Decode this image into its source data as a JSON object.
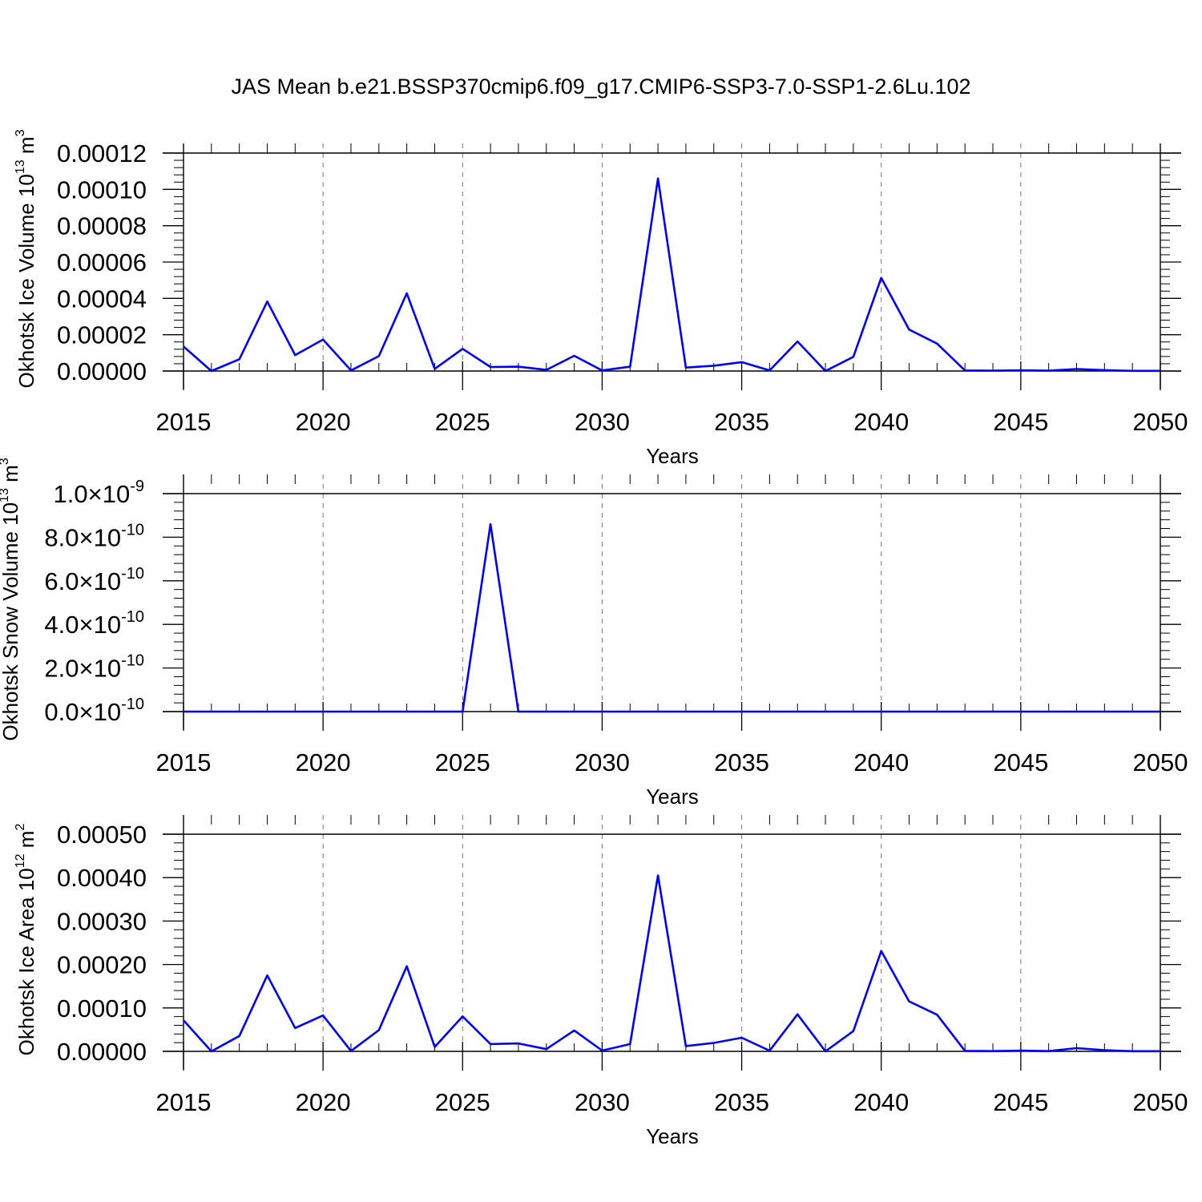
{
  "title": "JAS Mean b.e21.BSSP370cmip6.f09_g17.CMIP6-SSP3-7.0-SSP1-2.6Lu.102",
  "line_color": "#0000ff",
  "chart_data": [
    {
      "type": "line",
      "xlabel": "Years",
      "ylabel": "Okhotsk Ice Volume 10",
      "ylabel_exp": "13",
      "ylabel_unit": "m",
      "ylabel_unit_exp": "3",
      "xlim": [
        2015,
        2050
      ],
      "ylim": [
        0,
        0.00012
      ],
      "xticks": [
        "2015",
        "2020",
        "2025",
        "2030",
        "2035",
        "2040",
        "2045",
        "2050"
      ],
      "yticks": [
        {
          "value": 0.0,
          "label": "0.00000"
        },
        {
          "value": 2e-05,
          "label": "0.00002"
        },
        {
          "value": 4e-05,
          "label": "0.00004"
        },
        {
          "value": 6e-05,
          "label": "0.00006"
        },
        {
          "value": 8e-05,
          "label": "0.00008"
        },
        {
          "value": 0.0001,
          "label": "0.00010"
        },
        {
          "value": 0.00012,
          "label": "0.00012"
        }
      ],
      "grid_x": "dashed",
      "x": [
        2015,
        2016,
        2017,
        2018,
        2019,
        2020,
        2021,
        2022,
        2023,
        2024,
        2025,
        2026,
        2027,
        2028,
        2029,
        2030,
        2031,
        2032,
        2033,
        2034,
        2035,
        2036,
        2037,
        2038,
        2039,
        2040,
        2041,
        2042,
        2043,
        2044,
        2045,
        2046,
        2047,
        2048,
        2049,
        2050
      ],
      "y": [
        1.35e-05,
        0.0,
        6.5e-06,
        3.83e-05,
        8.8e-06,
        1.73e-05,
        3e-07,
        8.2e-06,
        4.28e-05,
        1.2e-06,
        1.22e-05,
        2.2e-06,
        2.4e-06,
        6e-07,
        8.4e-06,
        3e-07,
        2.4e-06,
        0.000106,
        1.9e-06,
        2.9e-06,
        4.9e-06,
        3e-07,
        1.63e-05,
        0.0,
        7.8e-06,
        5.13e-05,
        2.28e-05,
        1.51e-05,
        3e-07,
        2e-07,
        4e-07,
        2e-07,
        1.1e-06,
        5e-07,
        1e-07,
        1e-07
      ]
    },
    {
      "type": "line",
      "xlabel": "Years",
      "ylabel": "Okhotsk Snow Volume 10",
      "ylabel_exp": "13",
      "ylabel_unit": "m",
      "ylabel_unit_exp": "3",
      "xlim": [
        2015,
        2050
      ],
      "ylim": [
        0,
        1e-09
      ],
      "xticks": [
        "2015",
        "2020",
        "2025",
        "2030",
        "2035",
        "2040",
        "2045",
        "2050"
      ],
      "yticks": [
        {
          "value": 0.0,
          "mantissa": "0.0",
          "exp": "-10"
        },
        {
          "value": 2e-10,
          "mantissa": "2.0",
          "exp": "-10"
        },
        {
          "value": 4e-10,
          "mantissa": "4.0",
          "exp": "-10"
        },
        {
          "value": 6e-10,
          "mantissa": "6.0",
          "exp": "-10"
        },
        {
          "value": 8e-10,
          "mantissa": "8.0",
          "exp": "-10"
        },
        {
          "value": 1e-09,
          "mantissa": "1.0",
          "exp": "-9"
        }
      ],
      "grid_x": "dashed",
      "x": [
        2015,
        2016,
        2017,
        2018,
        2019,
        2020,
        2021,
        2022,
        2023,
        2024,
        2025,
        2026,
        2027,
        2028,
        2029,
        2030,
        2031,
        2032,
        2033,
        2034,
        2035,
        2036,
        2037,
        2038,
        2039,
        2040,
        2041,
        2042,
        2043,
        2044,
        2045,
        2046,
        2047,
        2048,
        2049,
        2050
      ],
      "y": [
        0,
        0,
        0,
        0,
        0,
        0,
        0,
        0,
        0,
        0,
        0,
        8.6e-10,
        0,
        0,
        0,
        0,
        0,
        0,
        0,
        0,
        0,
        0,
        0,
        0,
        0,
        0,
        0,
        0,
        0,
        0,
        0,
        0,
        0,
        0,
        0,
        0
      ]
    },
    {
      "type": "line",
      "xlabel": "Years",
      "ylabel": "Okhotsk Ice Area 10",
      "ylabel_exp": "12",
      "ylabel_unit": "m",
      "ylabel_unit_exp": "2",
      "xlim": [
        2015,
        2050
      ],
      "ylim": [
        0,
        0.0005
      ],
      "xticks": [
        "2015",
        "2020",
        "2025",
        "2030",
        "2035",
        "2040",
        "2045",
        "2050"
      ],
      "yticks": [
        {
          "value": 0.0,
          "label": "0.00000"
        },
        {
          "value": 0.0001,
          "label": "0.00010"
        },
        {
          "value": 0.0002,
          "label": "0.00020"
        },
        {
          "value": 0.0003,
          "label": "0.00030"
        },
        {
          "value": 0.0004,
          "label": "0.00040"
        },
        {
          "value": 0.0005,
          "label": "0.00050"
        }
      ],
      "grid_x": "dashed",
      "x": [
        2015,
        2016,
        2017,
        2018,
        2019,
        2020,
        2021,
        2022,
        2023,
        2024,
        2025,
        2026,
        2027,
        2028,
        2029,
        2030,
        2031,
        2032,
        2033,
        2034,
        2035,
        2036,
        2037,
        2038,
        2039,
        2040,
        2041,
        2042,
        2043,
        2044,
        2045,
        2046,
        2047,
        2048,
        2049,
        2050
      ],
      "y": [
        7.15e-05,
        0.0,
        3.55e-05,
        0.000175,
        5.37e-05,
        8.26e-05,
        7e-07,
        4.89e-05,
        0.000196,
        1.02e-05,
        8.04e-05,
        1.67e-05,
        1.83e-05,
        5.2e-06,
        4.81e-05,
        1.9e-06,
        1.68e-05,
        0.000405,
        1.21e-05,
        1.94e-05,
        3.13e-05,
        1.5e-06,
        8.52e-05,
        0.0,
        4.67e-05,
        0.000231,
        0.000115,
        8.43e-05,
        1.1e-06,
        6e-07,
        1.6e-06,
        6e-07,
        7.4e-06,
        2.6e-06,
        4e-07,
        4e-07
      ]
    }
  ]
}
